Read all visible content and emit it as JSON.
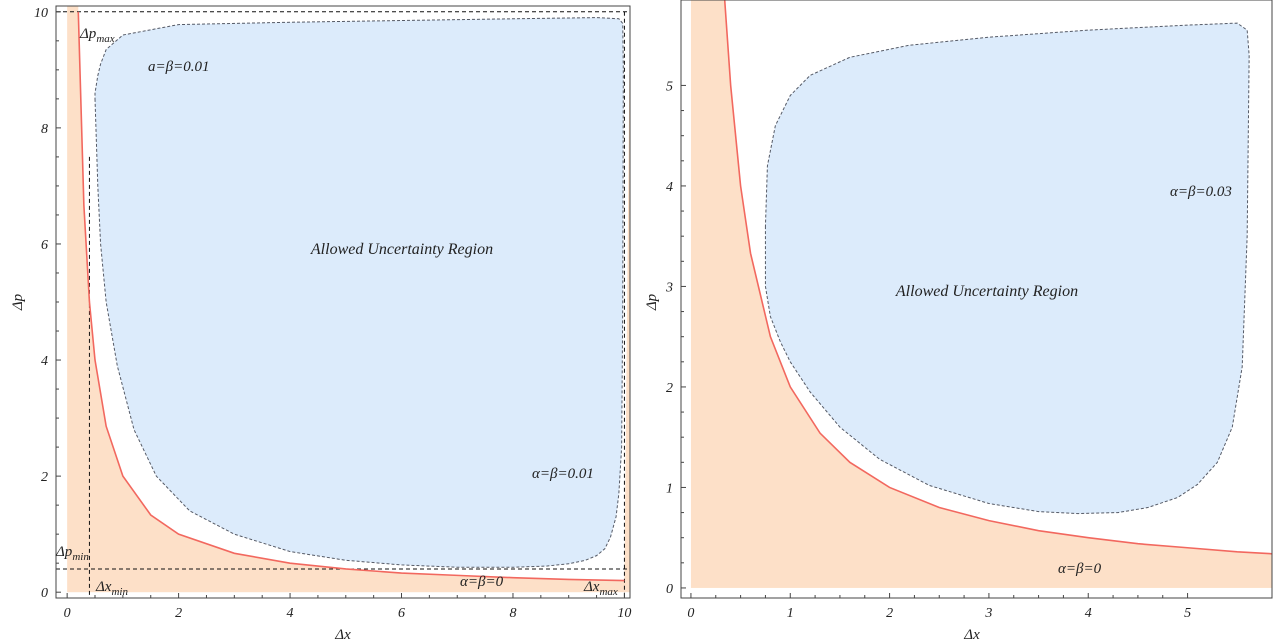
{
  "chart_data": [
    {
      "type": "area",
      "title": "",
      "xlabel": "Δx",
      "ylabel": "Δp",
      "xlim": [
        -0.2,
        10.1
      ],
      "ylim": [
        -0.1,
        10.1
      ],
      "x_ticks": [
        "0",
        "2",
        "4",
        "6",
        "8",
        "10"
      ],
      "y_ticks": [
        "0",
        "2",
        "4",
        "6",
        "8",
        "10"
      ],
      "x_tick_values": [
        0,
        2,
        4,
        6,
        8,
        10
      ],
      "y_tick_values": [
        0,
        2,
        4,
        6,
        8,
        10
      ],
      "series": [
        {
          "name": "α=β=0",
          "kind": "curve",
          "equation": "Δp = 2/Δx",
          "x": [
            0.2,
            0.3,
            0.4,
            0.5,
            0.7,
            1,
            1.5,
            2,
            3,
            4,
            5,
            6,
            7,
            8,
            9,
            10
          ],
          "y": [
            10,
            6.67,
            5,
            4,
            2.86,
            2,
            1.33,
            1,
            0.67,
            0.5,
            0.4,
            0.33,
            0.29,
            0.25,
            0.22,
            0.2
          ]
        },
        {
          "name": "α=β=0.01",
          "kind": "closed-contour",
          "x": [
            0.5,
            0.55,
            0.6,
            0.7,
            0.9,
            1.2,
            1.6,
            2.2,
            3.0,
            4.0,
            5.0,
            6.0,
            7.0,
            8.0,
            8.6,
            9.0,
            9.3,
            9.5,
            9.65,
            9.75,
            9.85,
            9.9,
            9.95,
            9.97,
            9.98,
            9.97,
            9.9,
            9.5,
            8.0,
            6.0,
            4.0,
            2.0,
            1.0,
            0.7,
            0.6,
            0.55,
            0.5,
            0.5
          ],
          "y": [
            8.5,
            7.0,
            6.0,
            5.0,
            3.9,
            2.8,
            2.0,
            1.4,
            1.0,
            0.7,
            0.55,
            0.47,
            0.43,
            0.43,
            0.45,
            0.49,
            0.55,
            0.63,
            0.75,
            0.95,
            1.3,
            1.7,
            2.5,
            5.0,
            9.0,
            9.8,
            9.88,
            9.9,
            9.88,
            9.85,
            9.82,
            9.78,
            9.6,
            9.35,
            9.1,
            8.9,
            8.6,
            8.5
          ]
        }
      ],
      "reference_lines": {
        "dx_min": 0.4,
        "dp_min": 0.4,
        "dx_max": 10,
        "dp_max": 10
      },
      "annotations": {
        "dp_max": "Δp",
        "dp_max_sub": "max",
        "dp_min": "Δp",
        "dp_min_sub": "min",
        "dx_min": "Δx",
        "dx_min_sub": "min",
        "dx_max": "Δx",
        "dx_max_sub": "max",
        "contour_top": "a=β=0.01",
        "contour_right": "α=β=0.01",
        "curve_label": "α=β=0",
        "region": "Allowed Uncertainty Region"
      },
      "colors": {
        "forbidden_fill": "#fde0c8",
        "allowed_fill": "#dcebfb",
        "curve": "#f2685f",
        "contour": "#555a66",
        "dashed": "#111111"
      }
    },
    {
      "type": "area",
      "title": "",
      "xlabel": "Δx",
      "ylabel": "Δp",
      "xlim": [
        -0.1,
        5.85
      ],
      "ylim": [
        -0.1,
        5.85
      ],
      "x_ticks": [
        "0",
        "1",
        "2",
        "3",
        "4",
        "5"
      ],
      "y_ticks": [
        "0",
        "1",
        "2",
        "3",
        "4",
        "5"
      ],
      "x_tick_values": [
        0,
        1,
        2,
        3,
        4,
        5
      ],
      "y_tick_values": [
        0,
        1,
        2,
        3,
        4,
        5
      ],
      "series": [
        {
          "name": "α=β=0",
          "kind": "curve",
          "equation": "Δp = 2/Δx",
          "x": [
            0.34,
            0.4,
            0.5,
            0.6,
            0.8,
            1.0,
            1.3,
            1.6,
            2.0,
            2.5,
            3.0,
            3.5,
            4.0,
            4.5,
            5.0,
            5.5,
            5.85
          ],
          "y": [
            5.85,
            5.0,
            4.0,
            3.33,
            2.5,
            2.0,
            1.54,
            1.25,
            1.0,
            0.8,
            0.67,
            0.57,
            0.5,
            0.44,
            0.4,
            0.36,
            0.34
          ]
        },
        {
          "name": "α=β=0.03",
          "kind": "closed-contour",
          "x": [
            0.75,
            0.75,
            0.8,
            0.9,
            1.0,
            1.2,
            1.5,
            1.9,
            2.4,
            3.0,
            3.5,
            3.9,
            4.3,
            4.6,
            4.9,
            5.1,
            5.3,
            5.45,
            5.55,
            5.6,
            5.62,
            5.6,
            5.5,
            5.0,
            4.0,
            3.0,
            2.2,
            1.6,
            1.2,
            1.0,
            0.85,
            0.77,
            0.75
          ],
          "y": [
            3.6,
            3.0,
            2.7,
            2.45,
            2.25,
            1.95,
            1.6,
            1.28,
            1.02,
            0.84,
            0.76,
            0.74,
            0.75,
            0.8,
            0.9,
            1.03,
            1.25,
            1.6,
            2.2,
            3.5,
            5.3,
            5.55,
            5.62,
            5.6,
            5.55,
            5.48,
            5.4,
            5.28,
            5.1,
            4.9,
            4.6,
            4.2,
            3.6
          ]
        }
      ],
      "annotations": {
        "contour_label": "α=β=0.03",
        "curve_label": "α=β=0",
        "region": "Allowed Uncertainty Region"
      },
      "colors": {
        "forbidden_fill": "#fde0c8",
        "allowed_fill": "#dcebfb",
        "curve": "#f2685f",
        "contour": "#555a66"
      }
    }
  ]
}
